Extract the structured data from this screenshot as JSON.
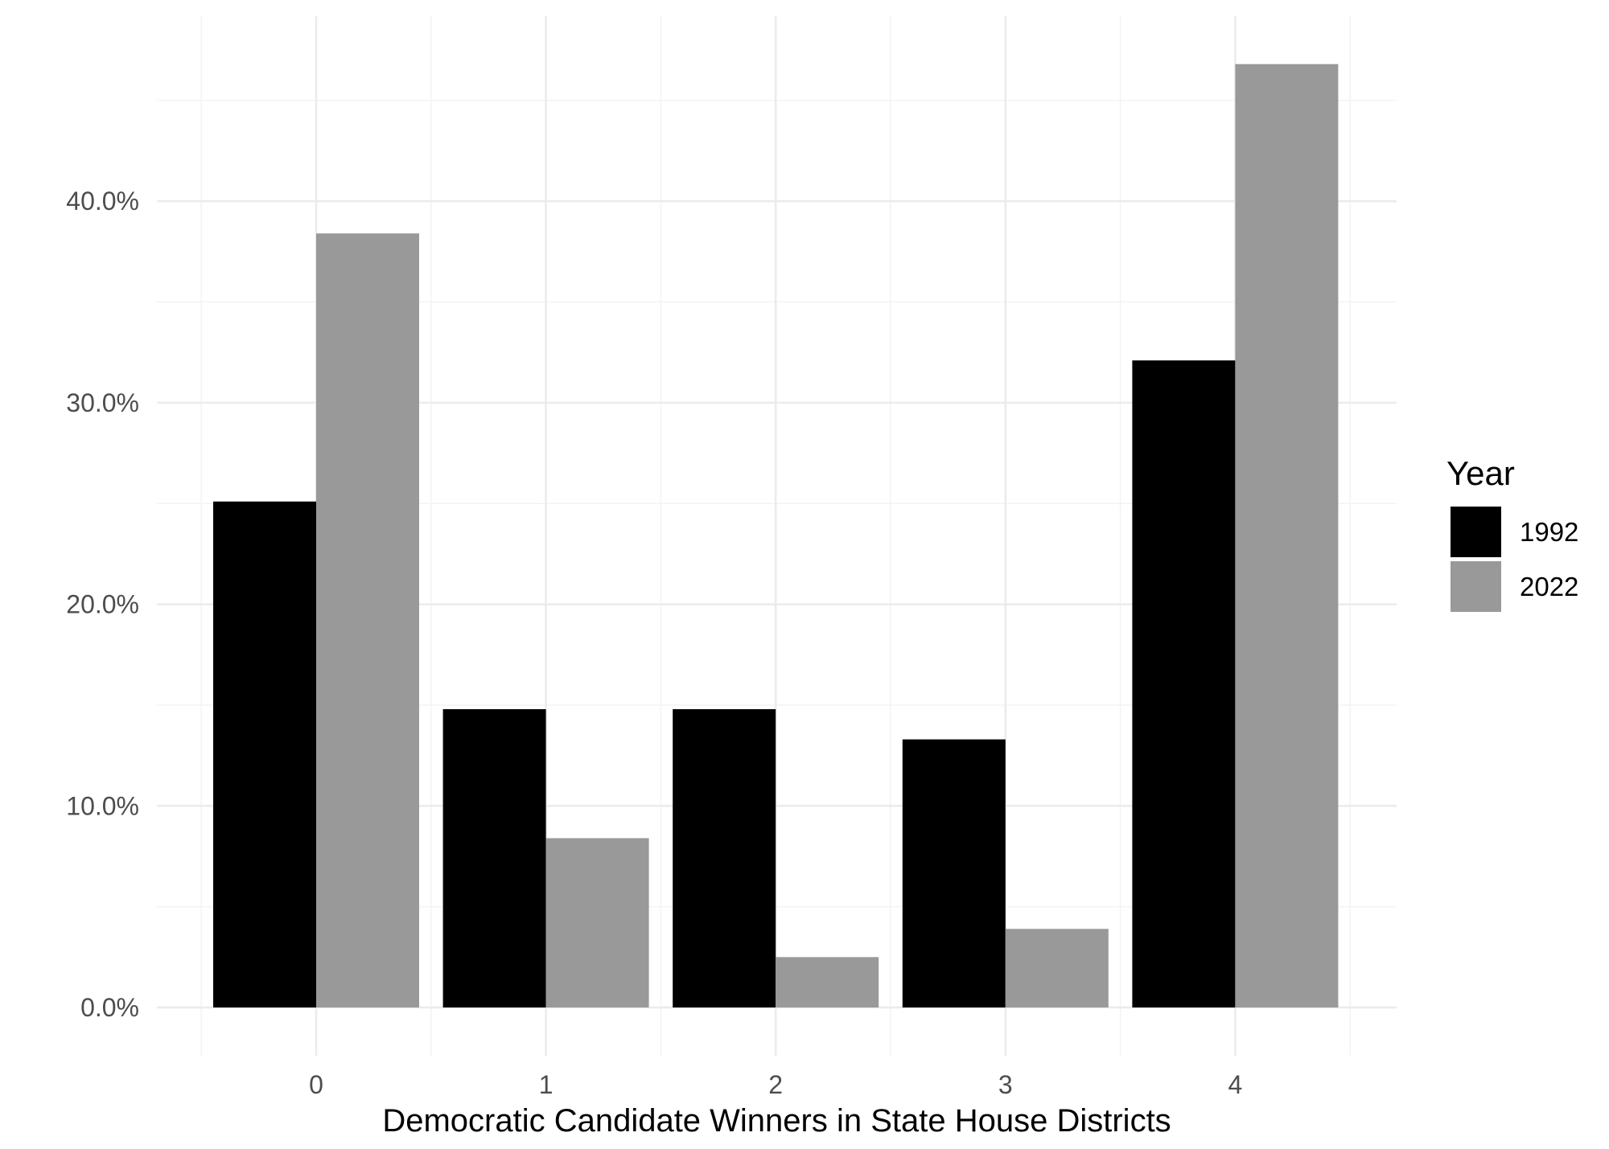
{
  "chart_data": {
    "type": "bar",
    "title": "",
    "xlabel": "Democratic Candidate Winners in State House Districts",
    "ylabel": "",
    "categories": [
      "0",
      "1",
      "2",
      "3",
      "4"
    ],
    "series": [
      {
        "name": "1992",
        "values": [
          25.1,
          14.8,
          14.8,
          13.3,
          32.1
        ],
        "color": "#000000"
      },
      {
        "name": "2022",
        "values": [
          38.4,
          8.4,
          2.5,
          3.9,
          46.8
        ],
        "color": "#999999"
      }
    ],
    "ylim": [
      0,
      48.5
    ],
    "y_ticks": [
      {
        "value": 0,
        "label": "0.0%"
      },
      {
        "value": 10,
        "label": "10.0%"
      },
      {
        "value": 20,
        "label": "20.0%"
      },
      {
        "value": 30,
        "label": "30.0%"
      },
      {
        "value": 40,
        "label": "40.0%"
      }
    ],
    "y_minor_ticks": [
      5,
      15,
      25,
      35,
      45
    ],
    "grid": true,
    "legend": {
      "title": "Year",
      "position": "right"
    },
    "colors": {
      "grid_major": "#ebebeb",
      "grid_minor": "#f3f3f3",
      "tick_text": "#4d4d4d",
      "background": "#ffffff"
    }
  }
}
